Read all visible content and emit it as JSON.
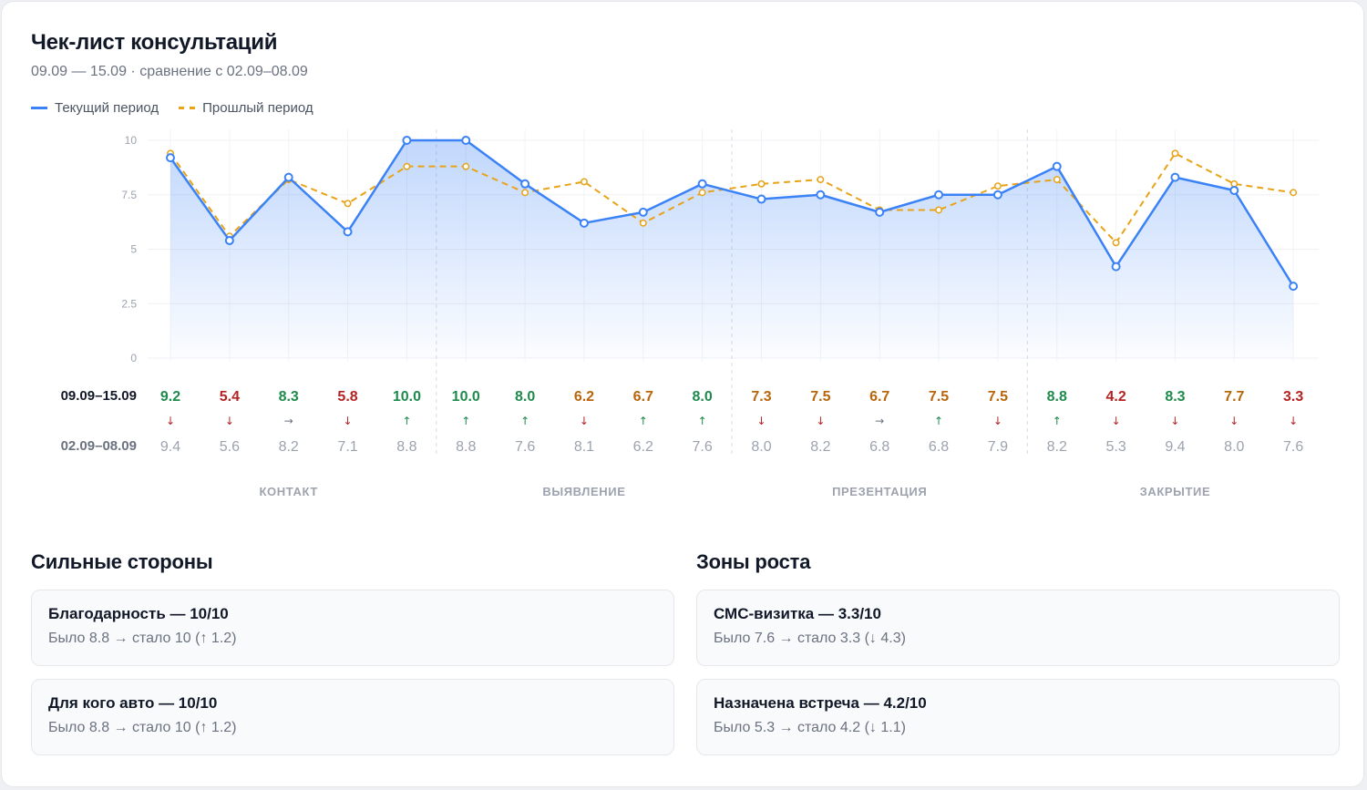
{
  "header": {
    "title": "Чек-лист консультаций",
    "subtitle": "09.09 — 15.09 · сравнение с 02.09–08.09"
  },
  "legend": {
    "current": "Текущий период",
    "previous": "Прошлый период"
  },
  "colors": {
    "current_line": "#3b82f6",
    "previous_line": "#e8a317",
    "good": "#1e8a4c",
    "mid": "#b8660b",
    "bad": "#b42323",
    "muted": "#9ca3af"
  },
  "chart_data": {
    "type": "line",
    "x": [
      "1",
      "2",
      "3",
      "4",
      "5",
      "6",
      "7",
      "8",
      "9",
      "10",
      "11",
      "12",
      "13",
      "14",
      "15",
      "16",
      "17",
      "18",
      "19",
      "20"
    ],
    "yticks": [
      "10",
      "7.5",
      "5",
      "2.5",
      "0"
    ],
    "ylim": [
      0,
      10
    ],
    "grid": true,
    "legend_position": "top-left",
    "series": [
      {
        "name": "Текущий период",
        "row_label": "09.09–15.09",
        "values": [
          9.2,
          5.4,
          8.3,
          5.8,
          10.0,
          10.0,
          8.0,
          6.2,
          6.7,
          8.0,
          7.3,
          7.5,
          6.7,
          7.5,
          7.5,
          8.8,
          4.2,
          8.3,
          7.7,
          3.3
        ]
      },
      {
        "name": "Прошлый период",
        "row_label": "02.09–08.09",
        "values": [
          9.4,
          5.6,
          8.2,
          7.1,
          8.8,
          8.8,
          7.6,
          8.1,
          6.2,
          7.6,
          8.0,
          8.2,
          6.8,
          6.8,
          7.9,
          8.2,
          5.3,
          9.4,
          8.0,
          7.6
        ]
      }
    ],
    "trend": [
      "down",
      "down",
      "right",
      "down",
      "up",
      "up",
      "up",
      "down",
      "up",
      "up",
      "down",
      "down",
      "right",
      "up",
      "down",
      "up",
      "down",
      "down",
      "down",
      "down"
    ],
    "groups": [
      {
        "label": "КОНТАКТ",
        "start": 0,
        "end": 4
      },
      {
        "label": "ВЫЯВЛЕНИЕ",
        "start": 5,
        "end": 9
      },
      {
        "label": "ПРЕЗЕНТАЦИЯ",
        "start": 10,
        "end": 14
      },
      {
        "label": "ЗАКРЫТИЕ",
        "start": 15,
        "end": 19
      }
    ]
  },
  "strengths": {
    "title": "Сильные стороны",
    "items": [
      {
        "head": "Благодарность — 10/10",
        "sub": "Было 8.8 → стало 10 (↑ 1.2)"
      },
      {
        "head": "Для кого авто — 10/10",
        "sub": "Было 8.8 → стало 10 (↑ 1.2)"
      }
    ]
  },
  "growth": {
    "title": "Зоны роста",
    "items": [
      {
        "head": "СМС-визитка — 3.3/10",
        "sub": "Было 7.6 → стало 3.3 (↓ 4.3)"
      },
      {
        "head": "Назначена встреча — 4.2/10",
        "sub": "Было 5.3 → стало 4.2 (↓ 1.1)"
      }
    ]
  }
}
